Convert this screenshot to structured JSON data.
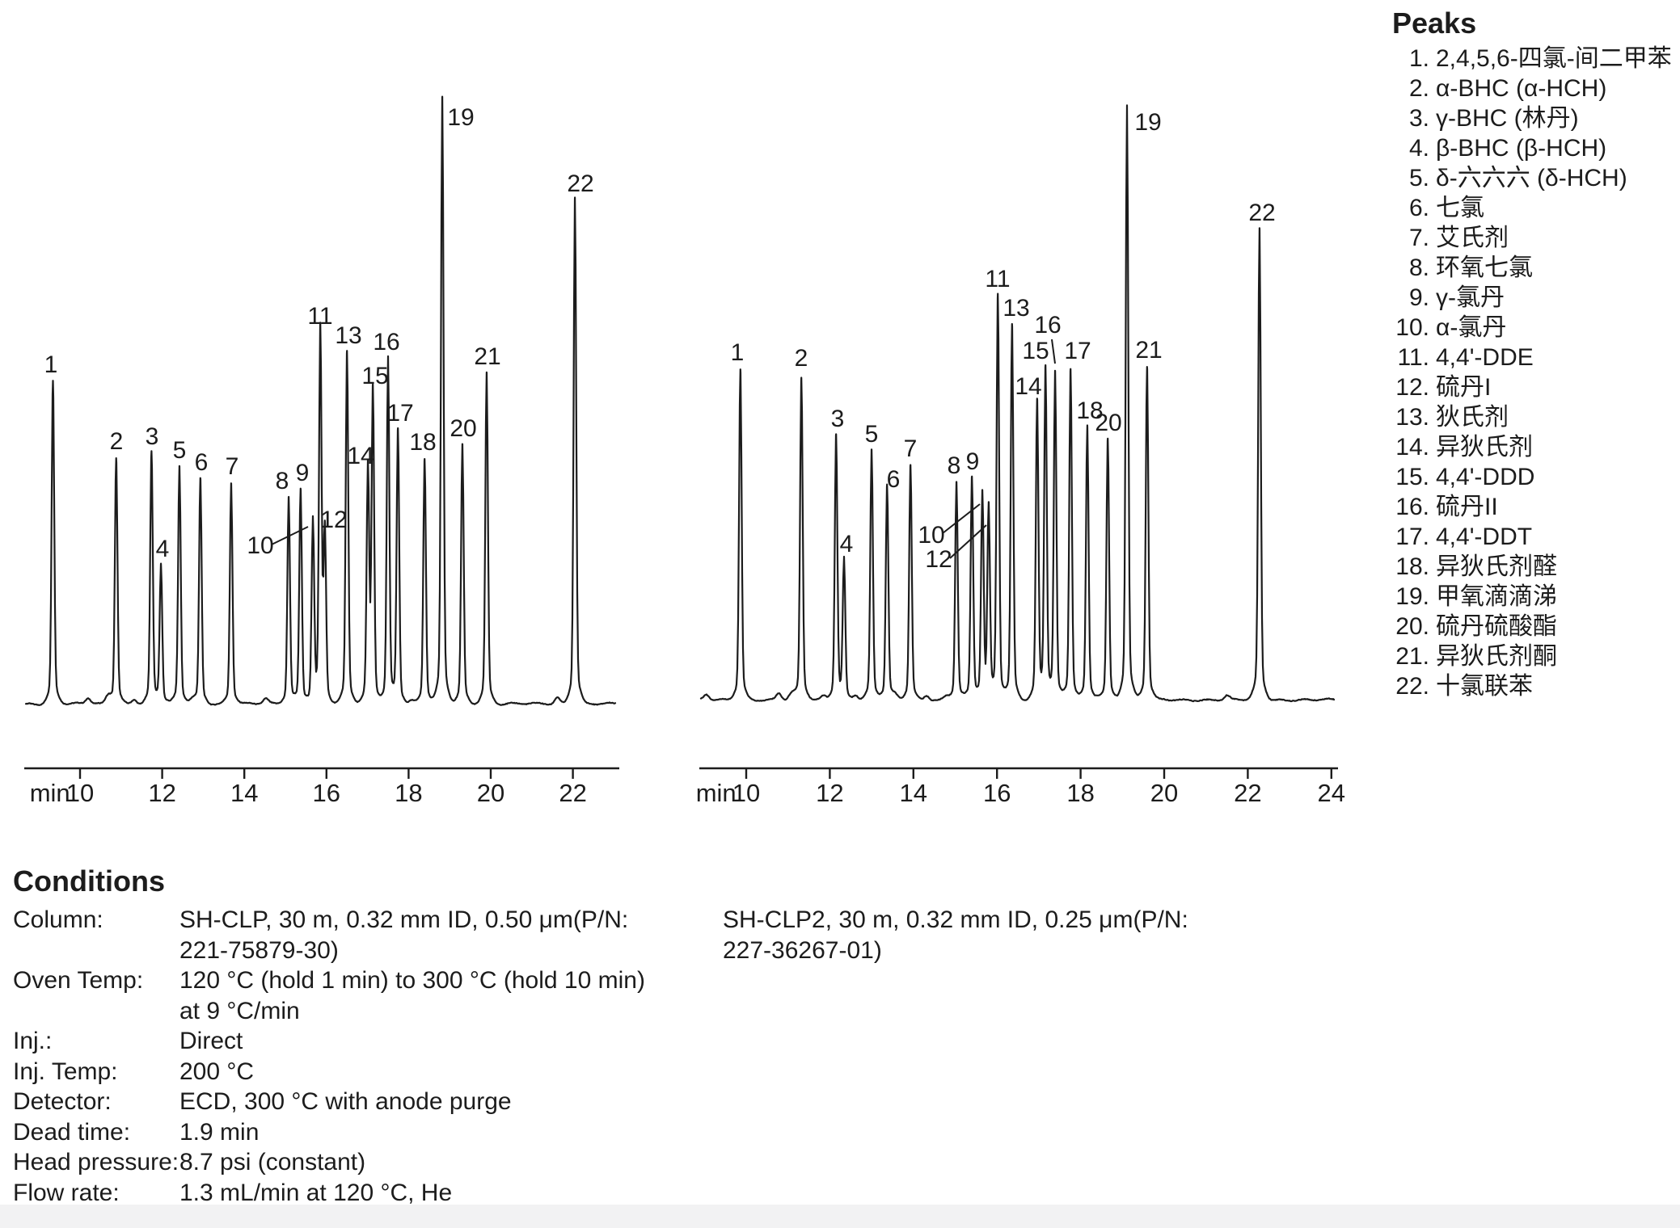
{
  "page": {
    "background": "#ffffff",
    "ink_color": "#1c1c1c"
  },
  "peaks_panel": {
    "title": "Peaks",
    "items": [
      {
        "n": "1.",
        "name": "2,4,5,6-四氯-间二甲苯"
      },
      {
        "n": "2.",
        "name": "α-BHC (α-HCH)"
      },
      {
        "n": "3.",
        "name": "γ-BHC (林丹)"
      },
      {
        "n": "4.",
        "name": "β-BHC (β-HCH)"
      },
      {
        "n": "5.",
        "name": "δ-六六六 (δ-HCH)"
      },
      {
        "n": "6.",
        "name": "七氯"
      },
      {
        "n": "7.",
        "name": "艾氏剂"
      },
      {
        "n": "8.",
        "name": "环氧七氯"
      },
      {
        "n": "9.",
        "name": "γ-氯丹"
      },
      {
        "n": "10.",
        "name": "α-氯丹"
      },
      {
        "n": "11.",
        "name": "4,4'-DDE"
      },
      {
        "n": "12.",
        "name": "硫丹I"
      },
      {
        "n": "13.",
        "name": "狄氏剂"
      },
      {
        "n": "14.",
        "name": "异狄氏剂"
      },
      {
        "n": "15.",
        "name": "4,4'-DDD"
      },
      {
        "n": "16.",
        "name": "硫丹II"
      },
      {
        "n": "17.",
        "name": "4,4'-DDT"
      },
      {
        "n": "18.",
        "name": "异狄氏剂醛"
      },
      {
        "n": "19.",
        "name": "甲氧滴滴涕"
      },
      {
        "n": "20.",
        "name": "硫丹硫酸酯"
      },
      {
        "n": "21.",
        "name": "异狄氏剂酮"
      },
      {
        "n": "22.",
        "name": "十氯联苯"
      }
    ]
  },
  "conditions": {
    "title": "Conditions",
    "rows": [
      {
        "label": "Column:",
        "value": "SH-CLP, 30 m, 0.32 mm ID, 0.50 μm(P/N:\n221-75879-30)",
        "value2": "SH-CLP2, 30 m, 0.32 mm ID, 0.25 μm(P/N:\n227-36267-01)"
      },
      {
        "label": "Oven Temp:",
        "value": "120 °C (hold 1 min) to 300 °C (hold 10 min)\nat 9 °C/min",
        "value2": ""
      },
      {
        "label": "Inj.:",
        "value": "Direct",
        "value2": ""
      },
      {
        "label": "Inj. Temp:",
        "value": "200 °C",
        "value2": ""
      },
      {
        "label": "Detector:",
        "value": "ECD, 300 °C with anode purge",
        "value2": ""
      },
      {
        "label": "Dead time:",
        "value": "1.9 min",
        "value2": ""
      },
      {
        "label": "Head pressure:",
        "value": "8.7 psi (constant)",
        "value2": ""
      },
      {
        "label": "Flow rate:",
        "value": "1.3 mL/min at 120 °C, He",
        "value2": ""
      }
    ]
  },
  "chart_data": [
    {
      "type": "line",
      "name": "Chromatogram on SH-CLP column (left)",
      "xlabel": "min.",
      "x_ticks": [
        10,
        12,
        14,
        16,
        18,
        20,
        22
      ],
      "x_range": [
        8.6,
        23.1
      ],
      "ylabel": "",
      "grid": false,
      "peaks": [
        {
          "n": 1,
          "t_min": 9.34,
          "height_pct": 53.3
        },
        {
          "n": 2,
          "t_min": 10.88,
          "height_pct": 40.7
        },
        {
          "n": 3,
          "t_min": 11.74,
          "height_pct": 41.5
        },
        {
          "n": 4,
          "t_min": 11.97,
          "height_pct": 22.9
        },
        {
          "n": 5,
          "t_min": 12.42,
          "height_pct": 39.2
        },
        {
          "n": 6,
          "t_min": 12.93,
          "height_pct": 37.2
        },
        {
          "n": 7,
          "t_min": 13.68,
          "height_pct": 36.5
        },
        {
          "n": 8,
          "t_min": 15.08,
          "height_pct": 34.1
        },
        {
          "n": 9,
          "t_min": 15.37,
          "height_pct": 35.5
        },
        {
          "n": 10,
          "t_min": 15.67,
          "height_pct": 30.0
        },
        {
          "n": 11,
          "t_min": 15.85,
          "height_pct": 61.3
        },
        {
          "n": 12,
          "t_min": 15.96,
          "height_pct": 27.9
        },
        {
          "n": 13,
          "t_min": 16.5,
          "height_pct": 58.1
        },
        {
          "n": 14,
          "t_min": 17.01,
          "height_pct": 38.5
        },
        {
          "n": 15,
          "t_min": 17.13,
          "height_pct": 51.5
        },
        {
          "n": 16,
          "t_min": 17.5,
          "height_pct": 57.1
        },
        {
          "n": 17,
          "t_min": 17.74,
          "height_pct": 45.3
        },
        {
          "n": 18,
          "t_min": 18.39,
          "height_pct": 40.5
        },
        {
          "n": 19,
          "t_min": 18.82,
          "height_pct": 100.0
        },
        {
          "n": 20,
          "t_min": 19.31,
          "height_pct": 42.8
        },
        {
          "n": 21,
          "t_min": 19.9,
          "height_pct": 54.7
        },
        {
          "n": 22,
          "t_min": 22.05,
          "height_pct": 83.7
        }
      ]
    },
    {
      "type": "line",
      "name": "Chromatogram on SH-CLP2 column (right)",
      "xlabel": "min.",
      "x_ticks": [
        10,
        12,
        14,
        16,
        18,
        20,
        22,
        24
      ],
      "x_range": [
        8.9,
        24.2
      ],
      "ylabel": "",
      "grid": false,
      "peaks": [
        {
          "n": 1,
          "t_min": 9.86,
          "height_pct": 55.7
        },
        {
          "n": 2,
          "t_min": 11.32,
          "height_pct": 54.1
        },
        {
          "n": 3,
          "t_min": 12.15,
          "height_pct": 44.6
        },
        {
          "n": 4,
          "t_min": 12.34,
          "height_pct": 23.5
        },
        {
          "n": 5,
          "t_min": 13.0,
          "height_pct": 42.0
        },
        {
          "n": 6,
          "t_min": 13.37,
          "height_pct": 36.1
        },
        {
          "n": 7,
          "t_min": 13.93,
          "height_pct": 39.5
        },
        {
          "n": 8,
          "t_min": 15.03,
          "height_pct": 36.7
        },
        {
          "n": 9,
          "t_min": 15.4,
          "height_pct": 37.4
        },
        {
          "n": 10,
          "t_min": 15.65,
          "height_pct": 34.4
        },
        {
          "n": 11,
          "t_min": 16.02,
          "height_pct": 68.1
        },
        {
          "n": 12,
          "t_min": 15.8,
          "height_pct": 31.9
        },
        {
          "n": 13,
          "t_min": 16.36,
          "height_pct": 63.2
        },
        {
          "n": 14,
          "t_min": 16.96,
          "height_pct": 50.0
        },
        {
          "n": 15,
          "t_min": 17.16,
          "height_pct": 55.4
        },
        {
          "n": 16,
          "t_min": 17.39,
          "height_pct": 55.0
        },
        {
          "n": 17,
          "t_min": 17.76,
          "height_pct": 55.7
        },
        {
          "n": 18,
          "t_min": 18.16,
          "height_pct": 46.0
        },
        {
          "n": 19,
          "t_min": 19.11,
          "height_pct": 100.0
        },
        {
          "n": 20,
          "t_min": 18.65,
          "height_pct": 43.9
        },
        {
          "n": 21,
          "t_min": 19.59,
          "height_pct": 56.1
        },
        {
          "n": 22,
          "t_min": 22.28,
          "height_pct": 79.2
        }
      ]
    }
  ]
}
